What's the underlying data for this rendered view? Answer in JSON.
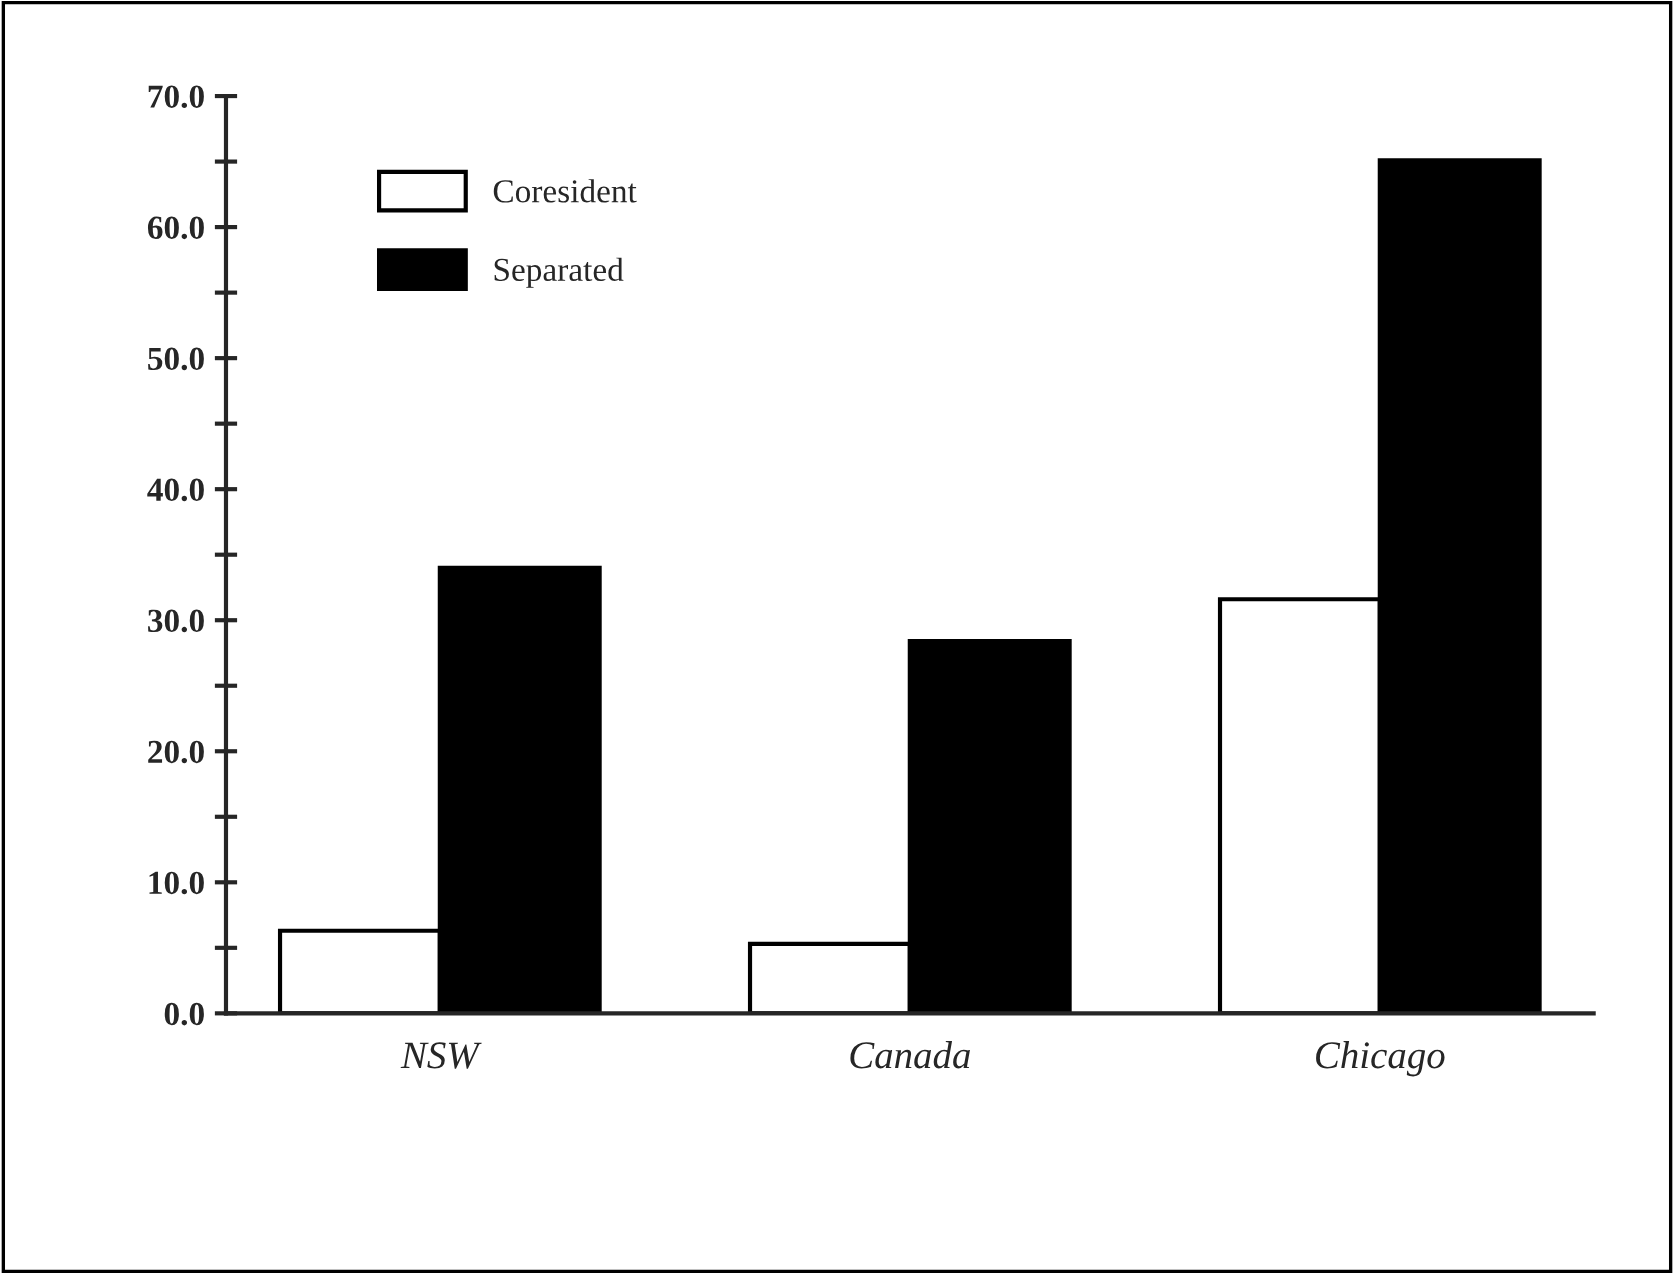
{
  "chart_data": {
    "type": "bar",
    "categories": [
      "NSW",
      "Canada",
      "Chicago"
    ],
    "series": [
      {
        "name": "Coresident",
        "color": "#ffffff",
        "values": [
          6.3,
          5.3,
          31.6
        ]
      },
      {
        "name": "Separated",
        "color": "#000000",
        "values": [
          34.0,
          28.4,
          65.1
        ]
      }
    ],
    "ylim": [
      0,
      70
    ],
    "yticks": [
      {
        "value": 0,
        "label": "0.0"
      },
      {
        "value": 5,
        "label": null
      },
      {
        "value": 10,
        "label": "10.0"
      },
      {
        "value": 15,
        "label": null
      },
      {
        "value": 20,
        "label": "20.0"
      },
      {
        "value": 25,
        "label": null
      },
      {
        "value": 30,
        "label": "30.0"
      },
      {
        "value": 35,
        "label": null
      },
      {
        "value": 40,
        "label": "40.0"
      },
      {
        "value": 45,
        "label": null
      },
      {
        "value": 50,
        "label": "50.0"
      },
      {
        "value": 55,
        "label": null
      },
      {
        "value": 60,
        "label": "60.0"
      },
      {
        "value": 65,
        "label": null
      },
      {
        "value": 70,
        "label": "70.0"
      }
    ],
    "grid": false,
    "legend": "top left"
  }
}
